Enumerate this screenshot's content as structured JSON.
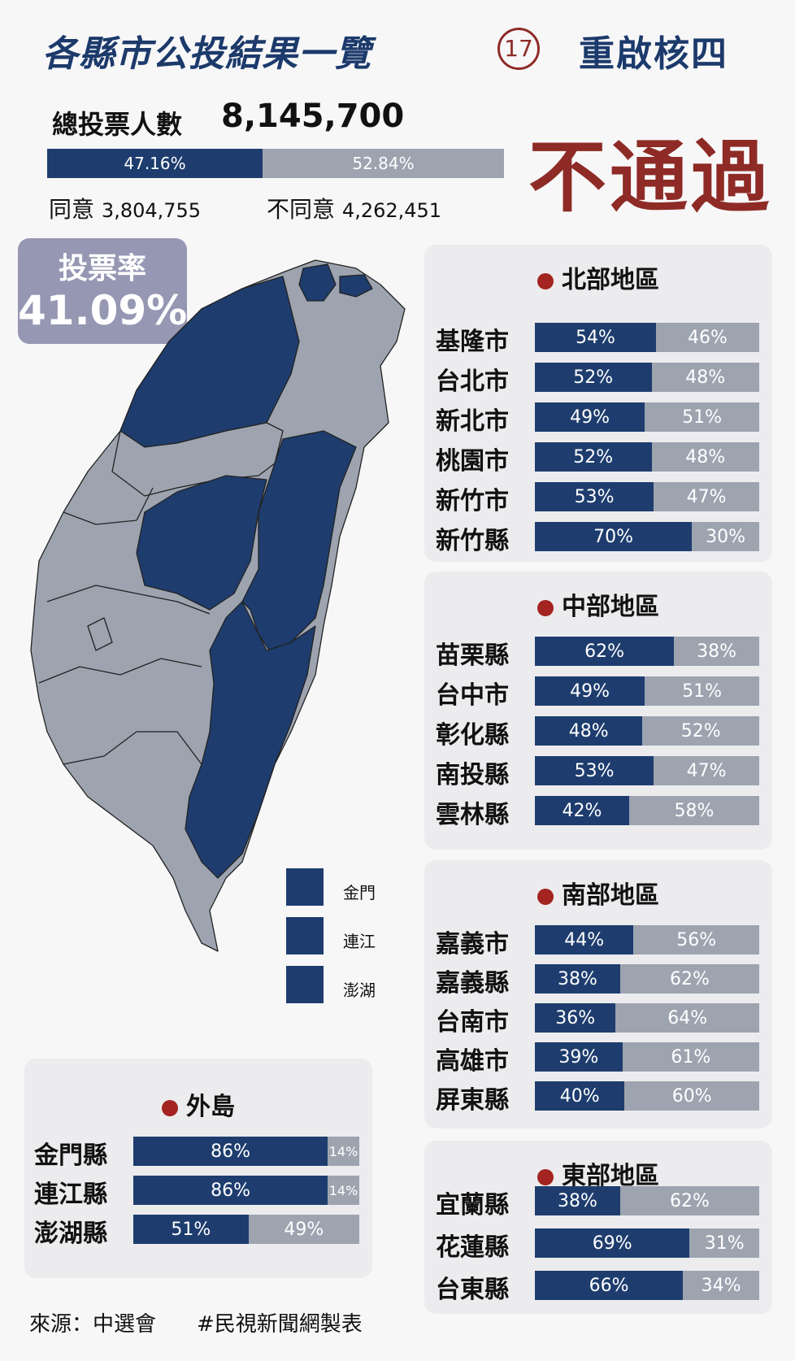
{
  "header": {
    "title": "各縣市公投結果一覽",
    "number": "17",
    "subtitle": "重啟核四",
    "total_label": "總投票人數",
    "total_value": "8,145,700",
    "result": "不通過"
  },
  "overall": {
    "agree_pct": 47.16,
    "disagree_pct": 52.84,
    "agree_pct_label": "47.16%",
    "disagree_pct_label": "52.84%",
    "agree_label": "同意",
    "agree_count": "3,804,755",
    "disagree_label": "不同意",
    "disagree_count": "4,262,451"
  },
  "turnout": {
    "label": "投票率",
    "value": "41.09%"
  },
  "map_legend": [
    "金門",
    "連江",
    "澎湖"
  ],
  "colors": {
    "agree": "#1e3d6e",
    "disagree": "#9da4b0",
    "accent": "#8e2b26",
    "dot": "#a32420",
    "turnout_bg": "#9697b3"
  },
  "chart_data": [
    {
      "type": "bar",
      "title": "北部地區",
      "series": [
        {
          "name": "同意"
        },
        {
          "name": "不同意"
        }
      ],
      "rows": [
        {
          "name": "基隆市",
          "yes": 54,
          "no": 46
        },
        {
          "name": "台北市",
          "yes": 52,
          "no": 48
        },
        {
          "name": "新北市",
          "yes": 49,
          "no": 51
        },
        {
          "name": "桃園市",
          "yes": 52,
          "no": 48
        },
        {
          "name": "新竹市",
          "yes": 53,
          "no": 47
        },
        {
          "name": "新竹縣",
          "yes": 70,
          "no": 30
        }
      ]
    },
    {
      "type": "bar",
      "title": "中部地區",
      "rows": [
        {
          "name": "苗栗縣",
          "yes": 62,
          "no": 38
        },
        {
          "name": "台中市",
          "yes": 49,
          "no": 51
        },
        {
          "name": "彰化縣",
          "yes": 48,
          "no": 52
        },
        {
          "name": "南投縣",
          "yes": 53,
          "no": 47
        },
        {
          "name": "雲林縣",
          "yes": 42,
          "no": 58
        }
      ]
    },
    {
      "type": "bar",
      "title": "南部地區",
      "rows": [
        {
          "name": "嘉義市",
          "yes": 44,
          "no": 56
        },
        {
          "name": "嘉義縣",
          "yes": 38,
          "no": 62
        },
        {
          "name": "台南市",
          "yes": 36,
          "no": 64
        },
        {
          "name": "高雄市",
          "yes": 39,
          "no": 61
        },
        {
          "name": "屏東縣",
          "yes": 40,
          "no": 60
        }
      ]
    },
    {
      "type": "bar",
      "title": "東部地區",
      "rows": [
        {
          "name": "宜蘭縣",
          "yes": 38,
          "no": 62
        },
        {
          "name": "花蓮縣",
          "yes": 69,
          "no": 31
        },
        {
          "name": "台東縣",
          "yes": 66,
          "no": 34
        }
      ]
    },
    {
      "type": "bar",
      "title": "外島",
      "rows": [
        {
          "name": "金門縣",
          "yes": 86,
          "no": 14
        },
        {
          "name": "連江縣",
          "yes": 86,
          "no": 14
        },
        {
          "name": "澎湖縣",
          "yes": 51,
          "no": 49
        }
      ]
    }
  ],
  "footer": {
    "source": "來源：中選會",
    "credit": "#民視新聞網製表"
  }
}
